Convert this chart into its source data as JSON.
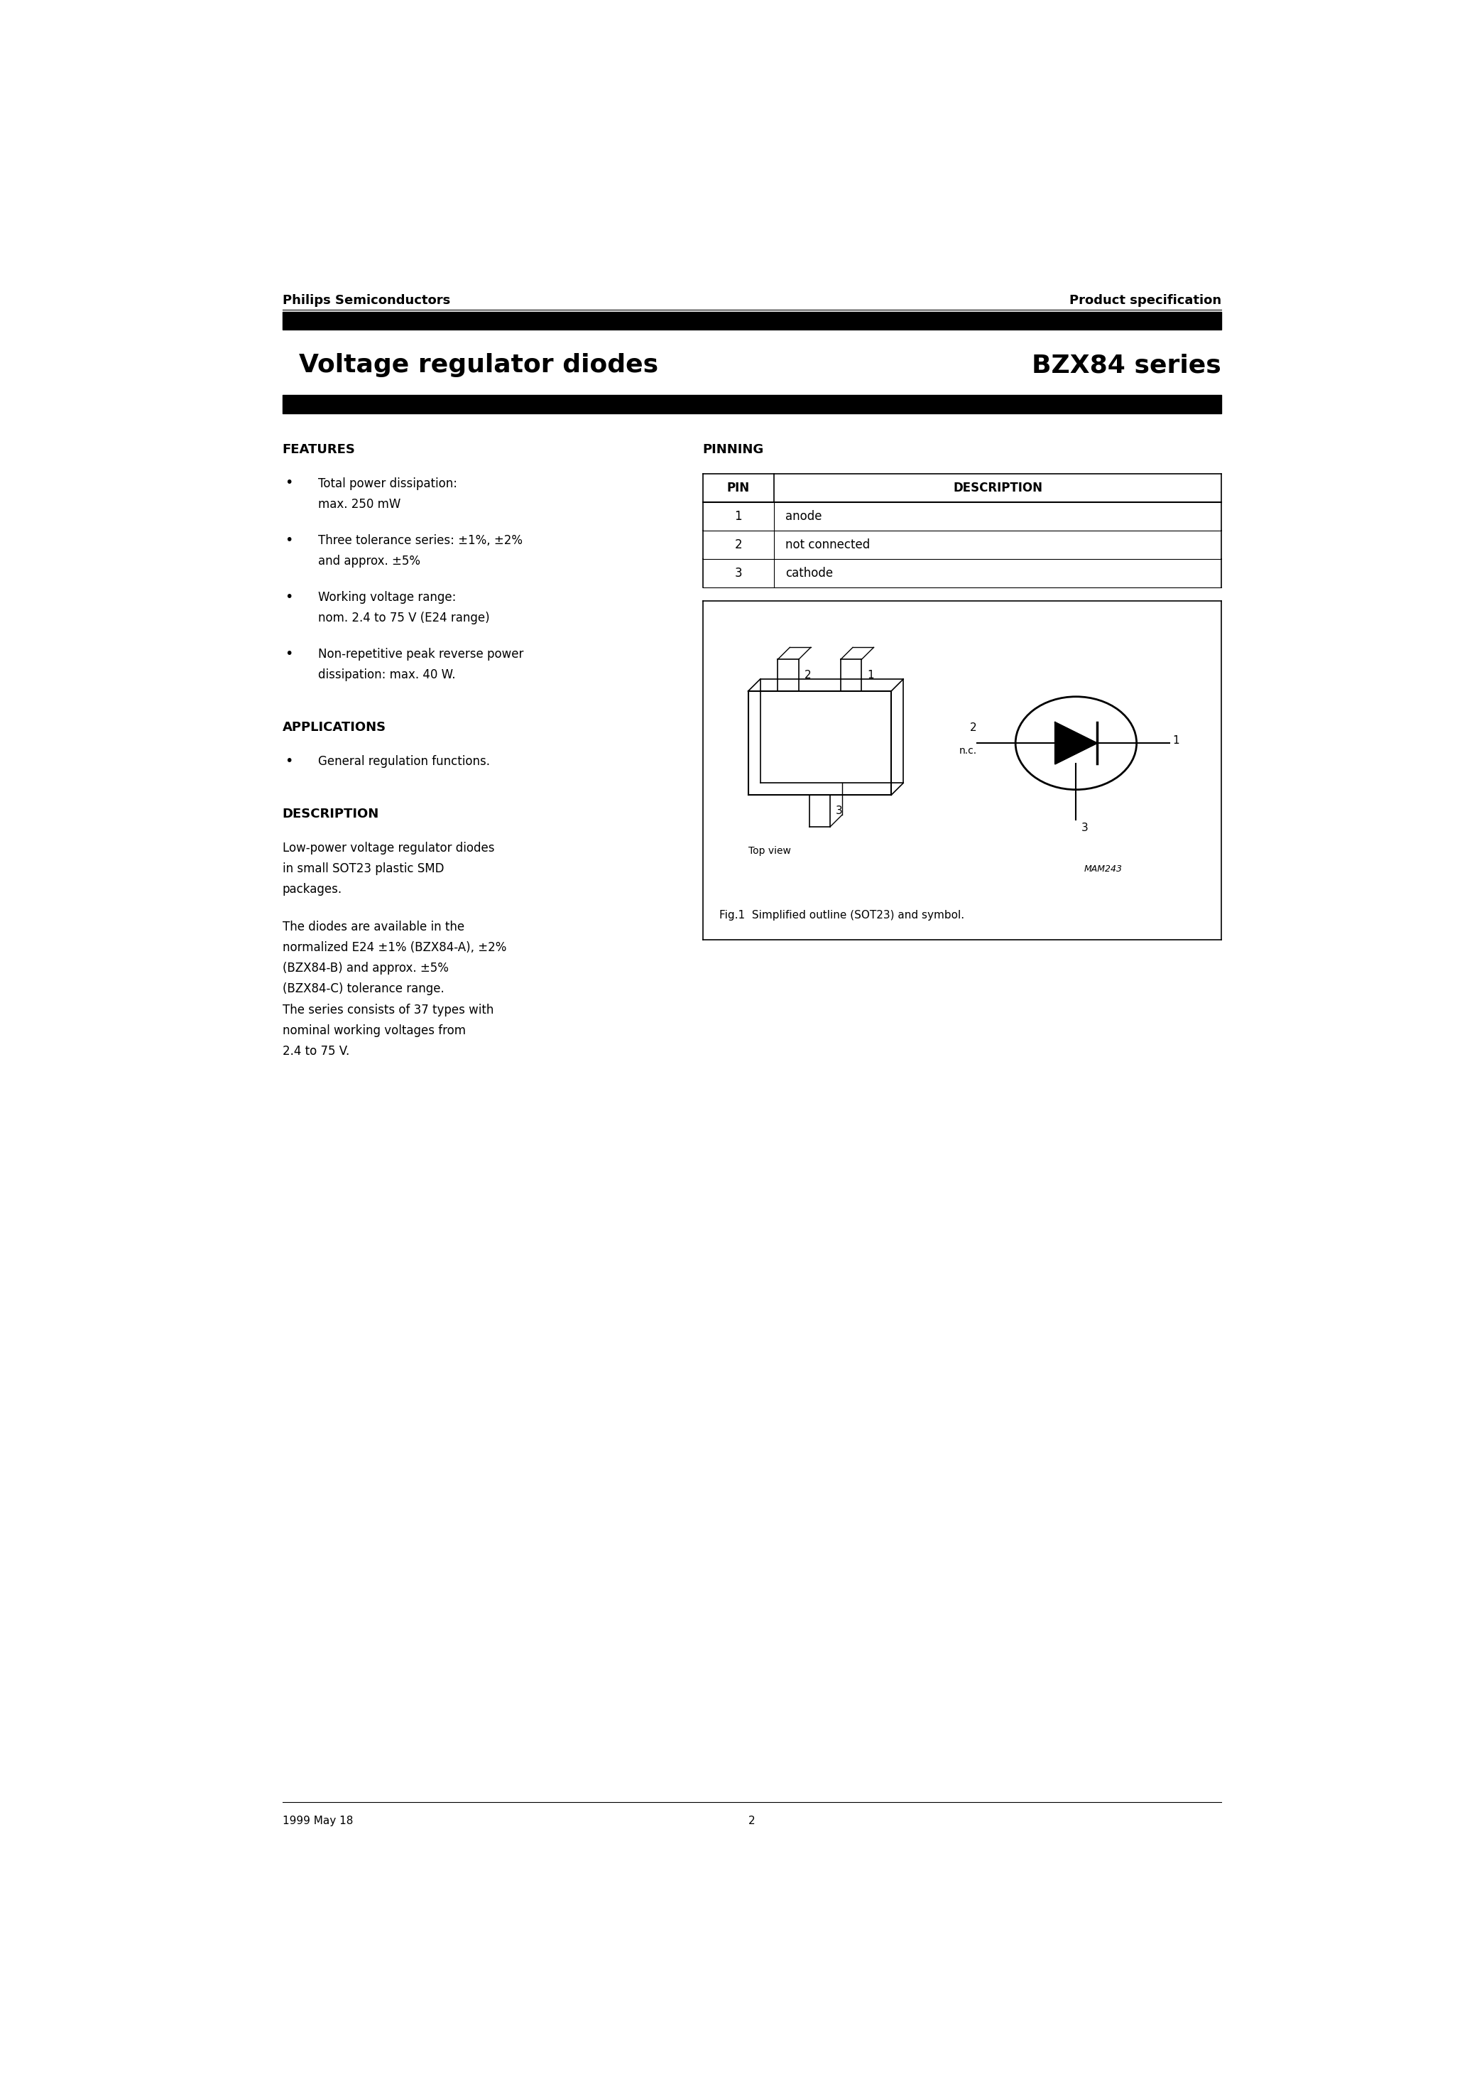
{
  "page_title_left": "Voltage regulator diodes",
  "page_title_right": "BZX84 series",
  "header_left": "Philips Semiconductors",
  "header_right": "Product specification",
  "features_title": "FEATURES",
  "features": [
    "Total power dissipation:\nmax. 250 mW",
    "Three tolerance series: ±1%, ±2%\nand approx. ±5%",
    "Working voltage range:\nnom. 2.4 to 75 V (E24 range)",
    "Non-repetitive peak reverse power\ndissipation: max. 40 W."
  ],
  "applications_title": "APPLICATIONS",
  "applications": [
    "General regulation functions."
  ],
  "description_title": "DESCRIPTION",
  "description_text": "Low-power voltage regulator diodes\nin small SOT23 plastic SMD\npackages.\n\nThe diodes are available in the\nnormalized E24 ±1% (BZX84-A), ±2%\n(BZX84-B) and approx. ±5%\n(BZX84-C) tolerance range.\nThe series consists of 37 types with\nnominal working voltages from\n2.4 to 75 V.",
  "pinning_title": "PINNING",
  "pin_headers": [
    "PIN",
    "DESCRIPTION"
  ],
  "pin_data": [
    [
      "1",
      "anode"
    ],
    [
      "2",
      "not connected"
    ],
    [
      "3",
      "cathode"
    ]
  ],
  "fig_caption": "Fig.1  Simplified outline (SOT23) and symbol.",
  "footer_left": "1999 May 18",
  "footer_center": "2",
  "bg_color": "#ffffff",
  "text_color": "#000000",
  "bar_color": "#000000"
}
